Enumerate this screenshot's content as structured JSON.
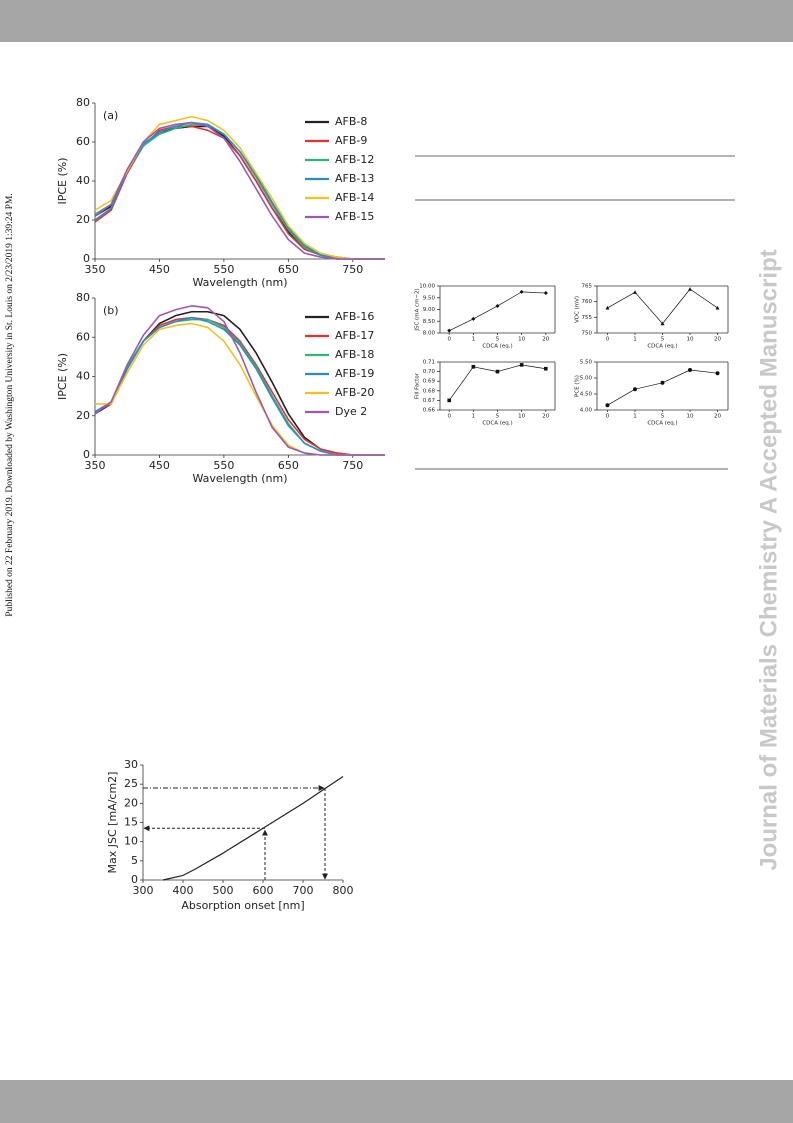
{
  "page": {
    "side_note": "Published on 22 February 2019. Downloaded by Washington University in St. Louis on 2/23/2019 1:39:24 PM.",
    "watermark": "Journal of Materials Chemistry A Accepted Manuscript"
  },
  "chart_data": [
    {
      "type": "line",
      "panel_label": "(a)",
      "x": [
        350,
        375,
        400,
        425,
        450,
        475,
        500,
        525,
        550,
        575,
        600,
        625,
        650,
        675,
        700,
        725,
        750,
        775,
        800
      ],
      "series": [
        {
          "name": "AFB-8",
          "color": "#222222",
          "values": [
            22,
            27,
            45,
            58,
            65,
            67,
            68,
            68,
            63,
            53,
            40,
            26,
            14,
            6,
            2,
            1,
            0,
            0,
            0
          ]
        },
        {
          "name": "AFB-9",
          "color": "#e8322e",
          "values": [
            19,
            25,
            44,
            58,
            66,
            68,
            68,
            66,
            62,
            53,
            40,
            26,
            13,
            5,
            2,
            0,
            0,
            0,
            0
          ]
        },
        {
          "name": "AFB-12",
          "color": "#2bb673",
          "values": [
            23,
            28,
            45,
            58,
            64,
            67,
            69,
            69,
            64,
            55,
            42,
            28,
            15,
            6,
            2,
            0,
            0,
            0,
            0
          ]
        },
        {
          "name": "AFB-13",
          "color": "#2b8ccc",
          "values": [
            20,
            26,
            45,
            59,
            65,
            68,
            70,
            69,
            64,
            55,
            43,
            29,
            16,
            7,
            2,
            1,
            0,
            0,
            0
          ]
        },
        {
          "name": "AFB-14",
          "color": "#f2c31c",
          "values": [
            25,
            30,
            45,
            60,
            69,
            71,
            73,
            71,
            66,
            57,
            44,
            31,
            17,
            8,
            3,
            1,
            0,
            0,
            0
          ]
        },
        {
          "name": "AFB-15",
          "color": "#9b59b6",
          "values": [
            22,
            28,
            46,
            60,
            67,
            69,
            70,
            68,
            62,
            50,
            36,
            22,
            10,
            3,
            1,
            0,
            0,
            0,
            0
          ]
        }
      ],
      "xlim": [
        350,
        800
      ],
      "xticks": [
        350,
        450,
        550,
        650,
        750
      ],
      "ylim": [
        0,
        80
      ],
      "yticks": [
        0,
        20,
        40,
        60,
        80
      ],
      "xlabel": "Wavelength (nm)",
      "ylabel": "IPCE (%)",
      "legend": "upper right"
    },
    {
      "type": "line",
      "panel_label": "(b)",
      "x": [
        350,
        375,
        400,
        425,
        450,
        475,
        500,
        525,
        550,
        575,
        600,
        625,
        650,
        675,
        700,
        725,
        750,
        775,
        800
      ],
      "series": [
        {
          "name": "AFB-16",
          "color": "#222222",
          "values": [
            21,
            26,
            44,
            58,
            67,
            71,
            73,
            73,
            71,
            64,
            52,
            37,
            21,
            9,
            3,
            1,
            0,
            0,
            0
          ]
        },
        {
          "name": "AFB-17",
          "color": "#e8322e",
          "values": [
            22,
            26,
            45,
            58,
            66,
            69,
            70,
            69,
            66,
            58,
            46,
            32,
            18,
            8,
            3,
            1,
            0,
            0,
            0
          ]
        },
        {
          "name": "AFB-18",
          "color": "#2bb673",
          "values": [
            22,
            27,
            45,
            58,
            65,
            68,
            69,
            69,
            65,
            57,
            45,
            30,
            16,
            6,
            2,
            0,
            0,
            0,
            0
          ]
        },
        {
          "name": "AFB-19",
          "color": "#2b8ccc",
          "values": [
            22,
            27,
            44,
            58,
            65,
            68,
            70,
            68,
            64,
            56,
            44,
            29,
            15,
            6,
            2,
            0,
            0,
            0,
            0
          ]
        },
        {
          "name": "AFB-20",
          "color": "#f2c31c",
          "values": [
            26,
            26,
            42,
            56,
            64,
            66,
            67,
            65,
            58,
            46,
            30,
            15,
            5,
            1,
            0,
            0,
            0,
            0,
            0
          ]
        },
        {
          "name": "Dye 2",
          "color": "#9b59b6",
          "values": [
            21,
            27,
            46,
            61,
            71,
            74,
            76,
            75,
            68,
            52,
            32,
            14,
            4,
            1,
            0,
            0,
            0,
            0,
            0
          ]
        }
      ],
      "xlim": [
        350,
        800
      ],
      "xticks": [
        350,
        450,
        550,
        650,
        750
      ],
      "ylim": [
        0,
        80
      ],
      "yticks": [
        0,
        20,
        40,
        60,
        80
      ],
      "xlabel": "Wavelength (nm)",
      "ylabel": "IPCE (%)",
      "legend": "upper right"
    },
    {
      "type": "line",
      "categories": [
        "0",
        "1",
        "5",
        "10",
        "20"
      ],
      "series": [
        {
          "color": "#111111",
          "marker": "diamond",
          "values": [
            8.1,
            8.6,
            9.15,
            9.75,
            9.7
          ]
        }
      ],
      "ylim": [
        8,
        10
      ],
      "yticks": [
        {
          "value": 8,
          "label": "8.00"
        },
        {
          "value": 8.5,
          "label": "8.50"
        },
        {
          "value": 9,
          "label": "9.00"
        },
        {
          "value": 9.5,
          "label": "9.50"
        },
        {
          "value": 10,
          "label": "10.00"
        }
      ],
      "xlabel": "CDCA (eq.)",
      "ylabel": "JSC (mA cm−2)"
    },
    {
      "type": "line",
      "categories": [
        "0",
        "1",
        "5",
        "10",
        "20"
      ],
      "series": [
        {
          "color": "#111111",
          "marker": "triangle",
          "values": [
            758,
            763,
            753,
            764,
            758
          ]
        }
      ],
      "ylim": [
        750,
        765
      ],
      "yticks": [
        750,
        755,
        760,
        765
      ],
      "xlabel": "CDCA (eq.)",
      "ylabel": "VOC (mV)"
    },
    {
      "type": "line",
      "categories": [
        "0",
        "1",
        "5",
        "10",
        "20"
      ],
      "series": [
        {
          "color": "#111111",
          "marker": "square",
          "values": [
            0.67,
            0.705,
            0.7,
            0.707,
            0.703
          ]
        }
      ],
      "ylim": [
        0.66,
        0.71
      ],
      "yticks": [
        0.66,
        0.67,
        0.68,
        0.69,
        {
          "value": 0.7,
          "label": "0.70"
        },
        0.71
      ],
      "xlabel": "CDCA (eq.)",
      "ylabel": "Fill Factor"
    },
    {
      "type": "line",
      "categories": [
        "0",
        "1",
        "5",
        "10",
        "20"
      ],
      "series": [
        {
          "color": "#111111",
          "marker": "circle",
          "values": [
            4.15,
            4.65,
            4.85,
            5.25,
            5.15
          ]
        }
      ],
      "ylim": [
        4,
        5.5
      ],
      "yticks": [
        {
          "value": 4,
          "label": "4.00"
        },
        {
          "value": 4.5,
          "label": "4.50"
        },
        {
          "value": 5,
          "label": "5.00"
        },
        {
          "value": 5.5,
          "label": "5.50"
        }
      ],
      "xlabel": "CDCA (eq.)",
      "ylabel": "PCE (%)"
    },
    {
      "type": "line",
      "x": [
        350,
        400,
        430,
        500,
        600,
        700,
        800
      ],
      "series": [
        {
          "color": "#222222",
          "values": [
            0,
            1.2,
            2.8,
            7,
            13.5,
            20,
            27
          ]
        }
      ],
      "xlim": [
        300,
        800
      ],
      "xticks": [
        300,
        400,
        500,
        600,
        700,
        800
      ],
      "ylim": [
        0,
        30
      ],
      "yticks": [
        0,
        5,
        10,
        15,
        20,
        25,
        30
      ],
      "xlabel": "Absorption onset [nm]",
      "ylabel": "Max JSC [mA/cm2]",
      "annotations": [
        {
          "x": 605,
          "y": 13.5
        },
        {
          "x": 755,
          "y": 24
        }
      ]
    }
  ]
}
